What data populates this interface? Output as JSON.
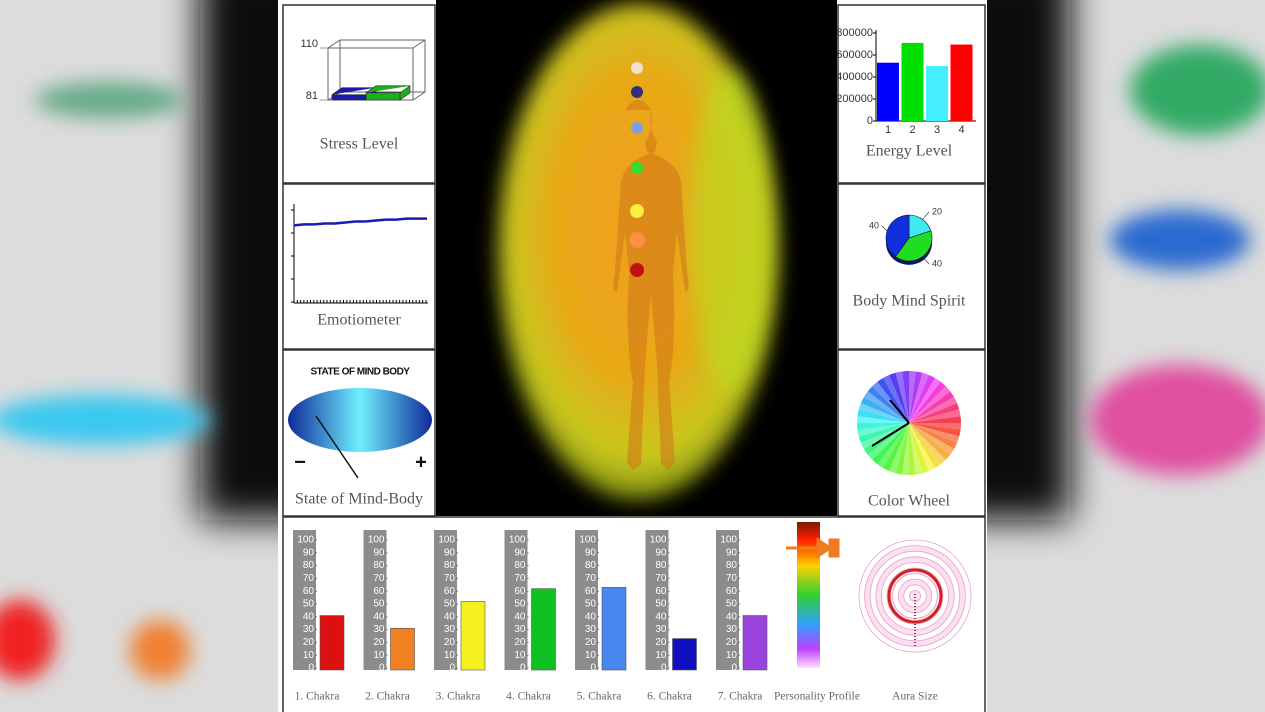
{
  "stress_level": {
    "title": "Stress Level",
    "ylim": [
      81,
      110
    ],
    "yticks": [
      81,
      110
    ],
    "values": [
      84,
      85
    ],
    "colors": [
      "#1a1aa8",
      "#1cb01c"
    ]
  },
  "energy_level": {
    "title": "Energy Level",
    "categories": [
      "1",
      "2",
      "3",
      "4"
    ],
    "values": [
      530000,
      710000,
      500000,
      695000
    ],
    "colors": [
      "#0000ff",
      "#00e000",
      "#44eeff",
      "#ff0000"
    ],
    "ylim": [
      0,
      800000
    ],
    "yticks": [
      0,
      200000,
      400000,
      600000,
      800000
    ]
  },
  "emotiometer": {
    "title": "Emotiometer",
    "ylim": [
      0,
      100
    ],
    "values": [
      80,
      81,
      81,
      82,
      82,
      83,
      84,
      84,
      85,
      86,
      86,
      87,
      87,
      87
    ],
    "color": "#1a1ab0"
  },
  "body_mind_spirit": {
    "title": "Body Mind Spirit",
    "values": [
      20,
      40,
      40
    ],
    "colors": [
      "#40e8f0",
      "#20dd20",
      "#1030e0"
    ]
  },
  "state_of_mind_body": {
    "heading": "STATE OF MIND BODY",
    "minus": "−",
    "plus": "+",
    "title": "State of Mind-Body"
  },
  "color_wheel": {
    "title": "Color Wheel"
  },
  "chakras": {
    "ylim": [
      0,
      100
    ],
    "yticks": [
      0,
      10,
      20,
      30,
      40,
      50,
      60,
      70,
      80,
      90,
      100
    ],
    "items": [
      {
        "label": "1. Chakra",
        "value": 41,
        "color": "#dd1010"
      },
      {
        "label": "2. Chakra",
        "value": 31,
        "color": "#f08020"
      },
      {
        "label": "3. Chakra",
        "value": 52,
        "color": "#f4f020"
      },
      {
        "label": "4. Chakra",
        "value": 62,
        "color": "#10c020"
      },
      {
        "label": "5. Chakra",
        "value": 63,
        "color": "#4a86f0"
      },
      {
        "label": "6. Chakra",
        "value": 23,
        "color": "#1010c0"
      },
      {
        "label": "7. Chakra",
        "value": 41,
        "color": "#9a44e0"
      }
    ]
  },
  "personality_profile": {
    "title": "Personality Profile"
  },
  "aura_size": {
    "title": "Aura Size"
  }
}
